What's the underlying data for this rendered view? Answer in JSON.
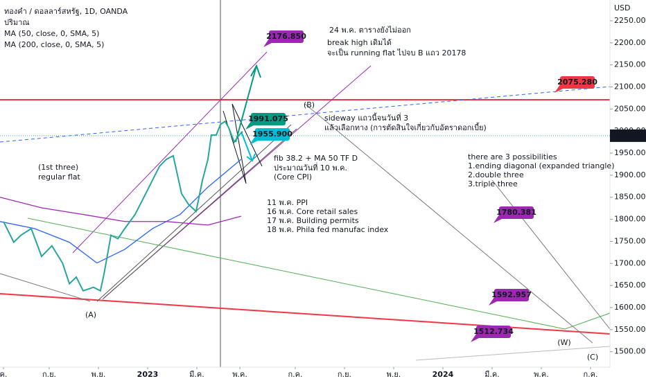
{
  "chart_data": {
    "type": "line",
    "title": "ทองคำ / ดอลลาร์สหรัฐ, 1D, OANDA",
    "volume_label": "ปริมาณ",
    "y_axis_label": "USD",
    "last_price": 1989.535,
    "xlim": [
      -1,
      23.79
    ],
    "xticks": [
      {
        "value": -0.86,
        "label": "ค."
      },
      {
        "value": 1,
        "label": "ก.ย."
      },
      {
        "value": 3,
        "label": "พ.ย."
      },
      {
        "value": 5,
        "label": "2023"
      },
      {
        "value": 7,
        "label": "มี.ค."
      },
      {
        "value": 8.75,
        "label": "พ.ค."
      },
      {
        "value": 11,
        "label": "ก.ค."
      },
      {
        "value": 13,
        "label": "ก.ย."
      },
      {
        "value": 15,
        "label": "พ.ย."
      },
      {
        "value": 17,
        "label": "2024"
      },
      {
        "value": 19,
        "label": "มี.ค."
      },
      {
        "value": 21,
        "label": "พ.ค."
      },
      {
        "value": 23,
        "label": "ก.ค."
      }
    ],
    "ylim": [
      1465,
      2297
    ],
    "yticks": [
      {
        "value": 1500,
        "label": "1500.000"
      },
      {
        "value": 1550,
        "label": "1550.000"
      },
      {
        "value": 1600,
        "label": "1600.000"
      },
      {
        "value": 1650,
        "label": "1650.000"
      },
      {
        "value": 1700,
        "label": "1700.000"
      },
      {
        "value": 1750,
        "label": "1750.000"
      },
      {
        "value": 1800,
        "label": "1800.000"
      },
      {
        "value": 1850,
        "label": "1850.000"
      },
      {
        "value": 1900,
        "label": "1900.000"
      },
      {
        "value": 1950,
        "label": "1950.000"
      },
      {
        "value": 2000,
        "label": "2000.000"
      },
      {
        "value": 2050,
        "label": "2050.000"
      },
      {
        "value": 2100,
        "label": "2100.000"
      },
      {
        "value": 2150,
        "label": "2150.000"
      },
      {
        "value": 2200,
        "label": "2200.000"
      },
      {
        "value": 2250,
        "label": "2250.000"
      }
    ],
    "series": [
      {
        "name": "MA (50, close, 0, SMA, 5)",
        "color": "#2962ff",
        "x": [
          -1,
          0.41,
          1.82,
          2.94,
          4.07,
          5.2,
          6.32,
          7.45,
          8.8
        ],
        "values": [
          1795,
          1779,
          1748,
          1701,
          1732,
          1779,
          1811,
          1873,
          1936
        ]
      },
      {
        "name": "MA (200, close, 0, SMA, 5)",
        "color": "#9c27b0",
        "x": [
          -1,
          0.69,
          2.38,
          4.07,
          5.76,
          7.45,
          8.8
        ],
        "values": [
          1850,
          1826,
          1811,
          1795,
          1795,
          1787,
          1807
        ]
      },
      {
        "color": "#26a69a",
        "x": [
          -0.86,
          -0.44,
          -0.15,
          0.27,
          0.69,
          1.11,
          1.54,
          1.82,
          2.1,
          2.38,
          2.8,
          3.08,
          3.23,
          3.51,
          3.79,
          4.07,
          4.49,
          4.92,
          5.2,
          5.48,
          5.76,
          6.04,
          6.38,
          6.66,
          6.97,
          7.23,
          7.45,
          7.59,
          7.79,
          7.96,
          8.15,
          8.3,
          8.52,
          8.72,
          8.86
        ],
        "values": [
          1795,
          1748,
          1764,
          1779,
          1716,
          1740,
          1701,
          1654,
          1669,
          1638,
          1646,
          1638,
          1677,
          1764,
          1756,
          1779,
          1811,
          1858,
          1889,
          1920,
          1936,
          1944,
          1858,
          1834,
          1818,
          1889,
          1936,
          1991,
          1991,
          2015,
          2022,
          2007,
          1975,
          1991,
          1999
        ]
      }
    ],
    "price_tags": [
      {
        "text": "2176.850",
        "color": "#9c27b0"
      },
      {
        "text": "2075.280",
        "color": "#f23645"
      },
      {
        "text": "1991.075",
        "color": "#089981"
      },
      {
        "text": "1955.900",
        "color": "#00bcd4"
      },
      {
        "text": "1780.381",
        "color": "#9c27b0"
      },
      {
        "text": "1592.957",
        "color": "#9c27b0"
      },
      {
        "text": "1512.734",
        "color": "#9c27b0"
      }
    ],
    "wave_labels": [
      "(A)",
      "(B)",
      "(W)",
      "(C)"
    ],
    "notes": [
      "24 พ.ค. ตารางยังไม่ออก",
      "break high เดิมได้",
      "จะเป็น running flat ไปจบ B แถว 20178",
      "sideway แถวนี้จนวันที่ 3",
      "แล้วเลือกทาง (การตัดสินใจเกี่ยวกับอัตราดอกเบี้ย)",
      "fib 38.2 + MA 50 TF D",
      "ประมาณวันที่ 10 พ.ค.",
      "(Core CPI)",
      "(1st three)",
      "regular flat",
      "11 พ.ค. PPI",
      "16 พ.ค. Core retail sales",
      "17 พ.ค. Building permits",
      "18 พ.ค. Phila fed manufac index",
      "there are 3 possibilities",
      "1.ending diagonal (expanded triangle)",
      "2.double three",
      "3.triple three"
    ]
  }
}
